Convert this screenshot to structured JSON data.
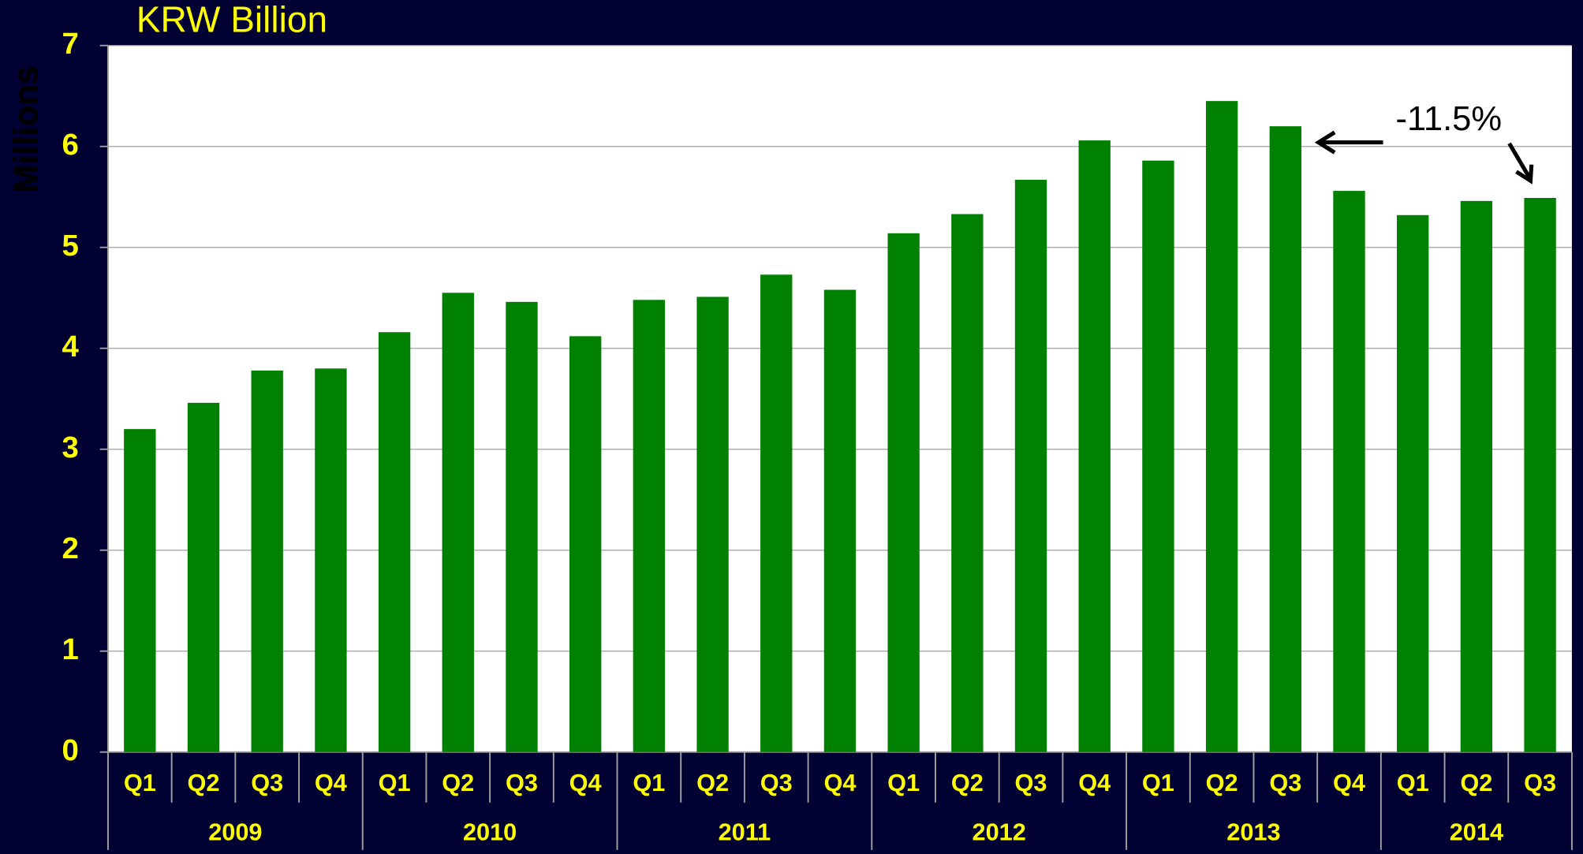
{
  "chart_data": {
    "type": "bar",
    "title": "KRW Billion",
    "y_label": "Millions",
    "groups": [
      {
        "label": "2009",
        "categories": [
          "Q1",
          "Q2",
          "Q3",
          "Q4"
        ]
      },
      {
        "label": "2010",
        "categories": [
          "Q1",
          "Q2",
          "Q3",
          "Q4"
        ]
      },
      {
        "label": "2011",
        "categories": [
          "Q1",
          "Q2",
          "Q3",
          "Q4"
        ]
      },
      {
        "label": "2012",
        "categories": [
          "Q1",
          "Q2",
          "Q3",
          "Q4"
        ]
      },
      {
        "label": "2013",
        "categories": [
          "Q1",
          "Q2",
          "Q3",
          "Q4"
        ]
      },
      {
        "label": "2014",
        "categories": [
          "Q1",
          "Q2",
          "Q3"
        ]
      }
    ],
    "values": [
      3.2,
      3.46,
      3.78,
      3.8,
      4.16,
      4.55,
      4.46,
      4.12,
      4.48,
      4.51,
      4.73,
      4.58,
      5.14,
      5.33,
      5.67,
      6.06,
      5.86,
      6.45,
      6.2,
      5.56,
      5.32,
      5.46,
      5.49
    ],
    "color": "#008000",
    "ylim": [
      0,
      7
    ],
    "yticks": [
      0,
      1,
      2,
      3,
      4,
      5,
      6,
      7
    ],
    "grid": true,
    "annotation": "-11.5%"
  }
}
